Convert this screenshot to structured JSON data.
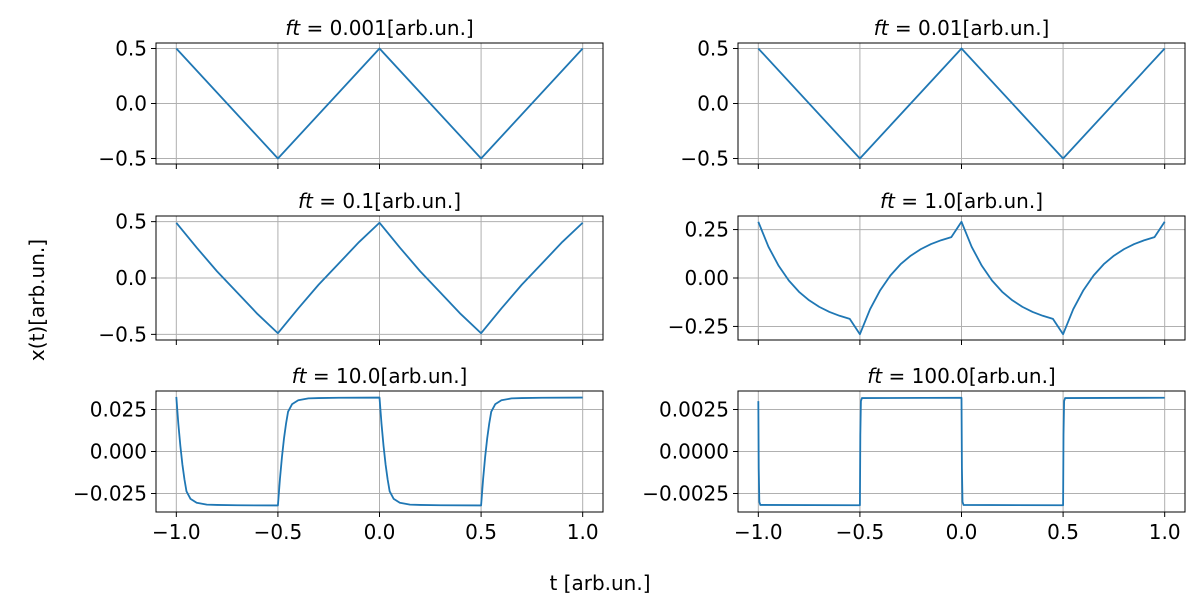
{
  "figure": {
    "xlabel": "t  [arb.un.]",
    "ylabel": "x(t)[arb.un.]",
    "line_color": "#1f77b4",
    "grid_color": "#b0b0b0"
  },
  "chart_data": [
    {
      "type": "line",
      "title_var": "ft",
      "title_value": "0.001",
      "title_unit": "[arb.un.]",
      "x": [
        -1.0,
        -0.5,
        0.0,
        0.5,
        1.0
      ],
      "y": [
        0.5,
        -0.5,
        0.5,
        -0.5,
        0.5
      ],
      "xlim": [
        -1.1,
        1.1
      ],
      "ylim": [
        -0.55,
        0.55
      ],
      "xticks": [
        -1.0,
        -0.5,
        0.0,
        0.5,
        1.0
      ],
      "xtick_labels": [
        "−1.0",
        "−0.5",
        "0.0",
        "0.5",
        "1.0"
      ],
      "yticks": [
        0.5,
        0.0,
        -0.5
      ],
      "ytick_labels": [
        "0.5",
        "0.0",
        "−0.5"
      ],
      "show_xtick_labels": false,
      "grid": true
    },
    {
      "type": "line",
      "title_var": "ft",
      "title_value": "0.01",
      "title_unit": "[arb.un.]",
      "x": [
        -1.0,
        -0.5,
        0.0,
        0.5,
        1.0
      ],
      "y": [
        0.5,
        -0.5,
        0.5,
        -0.5,
        0.5
      ],
      "xlim": [
        -1.1,
        1.1
      ],
      "ylim": [
        -0.55,
        0.55
      ],
      "xticks": [
        -1.0,
        -0.5,
        0.0,
        0.5,
        1.0
      ],
      "xtick_labels": [
        "−1.0",
        "−0.5",
        "0.0",
        "0.5",
        "1.0"
      ],
      "yticks": [
        0.5,
        0.0,
        -0.5
      ],
      "ytick_labels": [
        "0.5",
        "0.0",
        "−0.5"
      ],
      "show_xtick_labels": false,
      "grid": true
    },
    {
      "type": "line",
      "title_var": "ft",
      "title_value": "0.1",
      "title_unit": "[arb.un.]",
      "x": [
        -1.0,
        -0.9,
        -0.8,
        -0.7,
        -0.6,
        -0.5,
        -0.4,
        -0.3,
        -0.2,
        -0.1,
        0.0,
        0.1,
        0.2,
        0.3,
        0.4,
        0.5,
        0.6,
        0.7,
        0.8,
        0.9,
        1.0
      ],
      "y": [
        0.49,
        0.27,
        0.06,
        -0.13,
        -0.32,
        -0.49,
        -0.27,
        -0.06,
        0.13,
        0.32,
        0.49,
        0.27,
        0.06,
        -0.13,
        -0.32,
        -0.49,
        -0.27,
        -0.06,
        0.13,
        0.32,
        0.49
      ],
      "xlim": [
        -1.1,
        1.1
      ],
      "ylim": [
        -0.55,
        0.55
      ],
      "xticks": [
        -1.0,
        -0.5,
        0.0,
        0.5,
        1.0
      ],
      "xtick_labels": [
        "−1.0",
        "−0.5",
        "0.0",
        "0.5",
        "1.0"
      ],
      "yticks": [
        0.5,
        0.0,
        -0.5
      ],
      "ytick_labels": [
        "0.5",
        "0.0",
        "−0.5"
      ],
      "show_xtick_labels": false,
      "grid": true
    },
    {
      "type": "line",
      "title_var": "ft",
      "title_value": "1.0",
      "title_unit": "[arb.un.]",
      "x": [
        -1.0,
        -0.95,
        -0.9,
        -0.85,
        -0.8,
        -0.75,
        -0.7,
        -0.65,
        -0.6,
        -0.55,
        -0.5,
        -0.45,
        -0.4,
        -0.35,
        -0.3,
        -0.25,
        -0.2,
        -0.15,
        -0.1,
        -0.05,
        0.0,
        0.05,
        0.1,
        0.15,
        0.2,
        0.25,
        0.3,
        0.35,
        0.4,
        0.45,
        0.5,
        0.55,
        0.6,
        0.65,
        0.7,
        0.75,
        0.8,
        0.85,
        0.9,
        0.95,
        1.0
      ],
      "y": [
        0.29,
        0.161,
        0.063,
        -0.013,
        -0.071,
        -0.115,
        -0.149,
        -0.175,
        -0.195,
        -0.211,
        -0.29,
        -0.161,
        -0.063,
        0.013,
        0.071,
        0.115,
        0.149,
        0.175,
        0.195,
        0.211,
        0.29,
        0.161,
        0.063,
        -0.013,
        -0.071,
        -0.115,
        -0.149,
        -0.175,
        -0.195,
        -0.211,
        -0.29,
        -0.161,
        -0.063,
        0.013,
        0.071,
        0.115,
        0.149,
        0.175,
        0.195,
        0.211,
        0.29
      ],
      "xlim": [
        -1.1,
        1.1
      ],
      "ylim": [
        -0.32,
        0.32
      ],
      "xticks": [
        -1.0,
        -0.5,
        0.0,
        0.5,
        1.0
      ],
      "xtick_labels": [
        "−1.0",
        "−0.5",
        "0.0",
        "0.5",
        "1.0"
      ],
      "yticks": [
        0.25,
        0.0,
        -0.25
      ],
      "ytick_labels": [
        "0.25",
        "0.00",
        "−0.25"
      ],
      "show_xtick_labels": false,
      "grid": true
    },
    {
      "type": "line",
      "title_var": "ft",
      "title_value": "10.0",
      "title_unit": "[arb.un.]",
      "x": [
        -1.0,
        -0.99,
        -0.98,
        -0.97,
        -0.96,
        -0.95,
        -0.93,
        -0.9,
        -0.85,
        -0.8,
        -0.7,
        -0.5,
        -0.49,
        -0.48,
        -0.47,
        -0.46,
        -0.45,
        -0.43,
        -0.4,
        -0.35,
        -0.3,
        -0.2,
        0.0,
        0.01,
        0.02,
        0.03,
        0.04,
        0.05,
        0.07,
        0.1,
        0.15,
        0.2,
        0.3,
        0.5,
        0.51,
        0.52,
        0.53,
        0.54,
        0.55,
        0.57,
        0.6,
        0.65,
        0.7,
        0.8,
        1.0
      ],
      "y": [
        0.0325,
        0.0163,
        0.0032,
        -0.0078,
        -0.0166,
        -0.0237,
        -0.0282,
        -0.0305,
        -0.0316,
        -0.0318,
        -0.032,
        -0.0321,
        -0.0163,
        -0.0032,
        0.0078,
        0.0166,
        0.0237,
        0.0282,
        0.0305,
        0.0316,
        0.0318,
        0.032,
        0.0321,
        0.0163,
        0.0032,
        -0.0078,
        -0.0166,
        -0.0237,
        -0.0282,
        -0.0305,
        -0.0316,
        -0.0318,
        -0.032,
        -0.0321,
        -0.0163,
        -0.0032,
        0.0078,
        0.0166,
        0.0237,
        0.0282,
        0.0305,
        0.0316,
        0.0318,
        0.032,
        0.0321
      ],
      "xlim": [
        -1.1,
        1.1
      ],
      "ylim": [
        -0.036,
        0.036
      ],
      "xticks": [
        -1.0,
        -0.5,
        0.0,
        0.5,
        1.0
      ],
      "xtick_labels": [
        "−1.0",
        "−0.5",
        "0.0",
        "0.5",
        "1.0"
      ],
      "yticks": [
        0.025,
        0.0,
        -0.025
      ],
      "ytick_labels": [
        "0.025",
        "0.000",
        "−0.025"
      ],
      "show_xtick_labels": true,
      "grid": true
    },
    {
      "type": "line",
      "title_var": "ft",
      "title_value": "100.0",
      "title_unit": "[arb.un.]",
      "x": [
        -1.0,
        -0.998,
        -0.995,
        -0.99,
        -0.5,
        -0.498,
        -0.495,
        -0.49,
        0.0,
        0.002,
        0.005,
        0.01,
        0.5,
        0.502,
        0.505,
        0.51,
        1.0
      ],
      "y": [
        0.003,
        -0.001,
        -0.003,
        -0.00318,
        -0.0032,
        0.001,
        0.003,
        0.00318,
        0.0032,
        -0.001,
        -0.003,
        -0.00318,
        -0.0032,
        0.001,
        0.003,
        0.00318,
        0.0032
      ],
      "xlim": [
        -1.1,
        1.1
      ],
      "ylim": [
        -0.0036,
        0.0036
      ],
      "xticks": [
        -1.0,
        -0.5,
        0.0,
        0.5,
        1.0
      ],
      "xtick_labels": [
        "−1.0",
        "−0.5",
        "0.0",
        "0.5",
        "1.0"
      ],
      "yticks": [
        0.0025,
        0.0,
        -0.0025
      ],
      "ytick_labels": [
        "0.0025",
        "0.0000",
        "−0.0025"
      ],
      "show_xtick_labels": true,
      "grid": true
    }
  ]
}
